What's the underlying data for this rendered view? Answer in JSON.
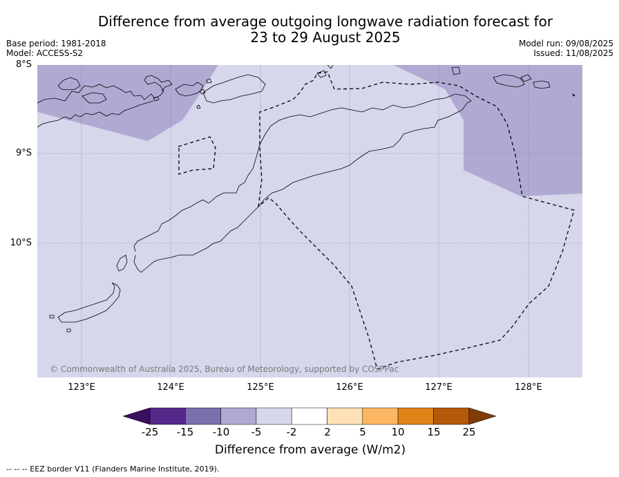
{
  "header": {
    "title_line1": "Difference from average outgoing longwave radiation forecast for",
    "title_line2": "23 to 29 August 2025",
    "base_period": "Base period: 1981-2018",
    "model": "Model: ACCESS-S2",
    "model_run": "Model run: 09/08/2025",
    "issued": "Issued: 11/08/2025"
  },
  "map": {
    "lat_labels": [
      "8°S",
      "9°S",
      "10°S"
    ],
    "lon_labels": [
      "123°E",
      "124°E",
      "125°E",
      "126°E",
      "127°E",
      "128°E"
    ],
    "extent": {
      "lon_min": 122.5,
      "lon_max": 128.6,
      "lat_north": -8.0,
      "lat_south": -11.5
    },
    "copyright": "© Commonwealth of Australia 2025, Bureau of Meteorology, supported by COSPPac",
    "colors": {
      "background_class": "#d6d7eb",
      "anomaly_class": "#b0aad3",
      "coastline": "#000000",
      "eez_border": "#000000"
    }
  },
  "colorbar": {
    "ticks": [
      "-25",
      "-15",
      "-10",
      "-5",
      "-2",
      "2",
      "5",
      "10",
      "15",
      "25"
    ],
    "colors": [
      "#3a0f5e",
      "#54288a",
      "#7b6fae",
      "#b0aad3",
      "#d6d7eb",
      "#ffffff",
      "#fee1b6",
      "#fdb662",
      "#e08418",
      "#b45809",
      "#7f3b08"
    ],
    "label": "Difference from average (W/m2)"
  },
  "footnote": "-- -- -- EEZ border V11 (Flanders Marine Institute, 2019)."
}
